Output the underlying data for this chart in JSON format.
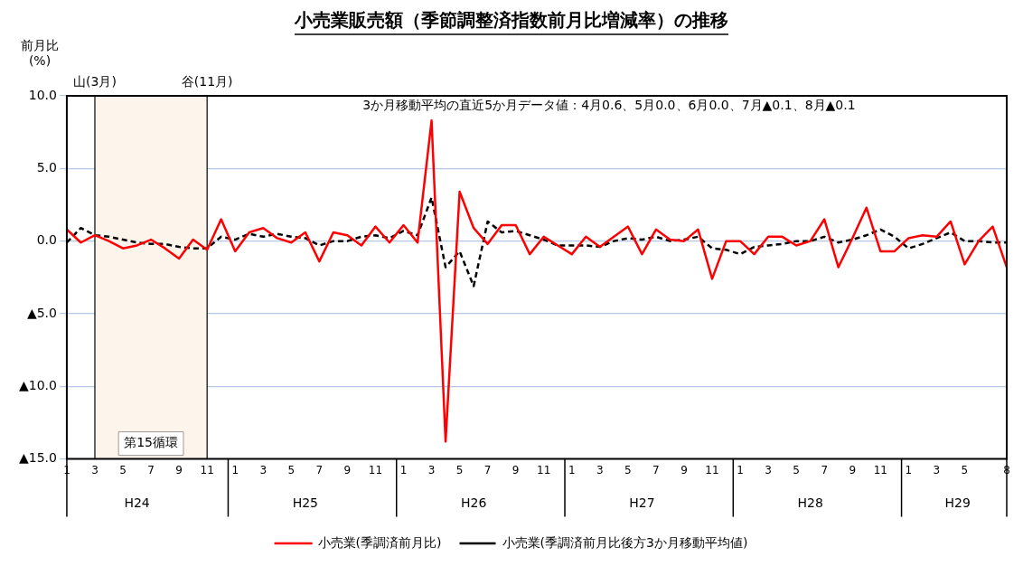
{
  "chart_data": {
    "type": "line",
    "title": "小売業販売額（季節調整済指数前月比増減率）の推移",
    "ylabel": "前月比\n(%)",
    "categories": [
      "1",
      null,
      "3",
      null,
      "5",
      null,
      "7",
      null,
      "9",
      null,
      "11",
      null,
      "1",
      null,
      "3",
      null,
      "5",
      null,
      "7",
      null,
      "9",
      null,
      "11",
      null,
      "1",
      null,
      "3",
      null,
      "5",
      null,
      "7",
      null,
      "9",
      null,
      "11",
      null,
      "1",
      null,
      "3",
      null,
      "5",
      null,
      "7",
      null,
      "9",
      null,
      "11",
      null,
      "1",
      null,
      "3",
      null,
      "5",
      null,
      "7",
      null,
      "9",
      null,
      "11",
      null,
      "1",
      null,
      "3",
      null,
      "5",
      null,
      null,
      "8"
    ],
    "series": [
      {
        "name": "小売業(季調済前月比)",
        "color": "#ff0000",
        "line_style": "solid",
        "values": [
          0.8,
          -0.1,
          0.4,
          0.0,
          -0.5,
          -0.3,
          0.1,
          -0.5,
          -1.2,
          0.1,
          -0.6,
          1.5,
          -0.7,
          0.6,
          0.9,
          0.2,
          -0.1,
          0.6,
          -1.4,
          0.6,
          0.4,
          -0.3,
          1.0,
          -0.1,
          1.1,
          -0.1,
          8.3,
          -13.8,
          3.4,
          0.9,
          -0.2,
          1.1,
          1.1,
          -0.9,
          0.3,
          -0.3,
          -0.9,
          0.3,
          -0.4,
          0.3,
          1.0,
          -0.9,
          0.8,
          0.1,
          0.0,
          0.8,
          -2.6,
          0.0,
          0.0,
          -0.9,
          0.3,
          0.3,
          -0.3,
          0.0,
          1.5,
          -1.8,
          0.2,
          2.3,
          -0.7,
          -0.7,
          0.2,
          0.4,
          0.3,
          1.35,
          -1.6,
          0.0,
          1.0,
          -1.8
        ]
      },
      {
        "name": "小売業(季調済前月比後方3か月移動平均値)",
        "color": "#000000",
        "line_style": "dashed",
        "values": [
          -0.1,
          0.9,
          0.4,
          0.3,
          0.1,
          -0.1,
          -0.2,
          -0.2,
          -0.4,
          -0.5,
          -0.5,
          0.3,
          0.1,
          0.5,
          0.3,
          0.5,
          0.3,
          0.2,
          -0.3,
          0.0,
          0.0,
          0.3,
          0.4,
          0.2,
          0.7,
          0.4,
          3.0,
          -1.8,
          -0.7,
          -3.1,
          1.35,
          0.6,
          0.7,
          0.4,
          0.1,
          -0.3,
          -0.3,
          -0.3,
          -0.4,
          0.0,
          0.2,
          0.1,
          0.3,
          0.0,
          0.1,
          0.3,
          -0.5,
          -0.6,
          -0.9,
          -0.4,
          -0.3,
          -0.2,
          0.0,
          0.0,
          0.3,
          -0.1,
          0.1,
          0.4,
          0.8,
          0.3,
          -0.5,
          -0.2,
          0.2,
          0.6,
          0.0,
          0.0,
          -0.1,
          -0.1
        ]
      }
    ],
    "ylim": [
      -15,
      10
    ],
    "yticks": [
      {
        "value": 10,
        "label": "10.0"
      },
      {
        "value": 5,
        "label": "5.0"
      },
      {
        "value": 0,
        "label": "0.0"
      },
      {
        "value": -5,
        "label": "▲5.0"
      },
      {
        "value": -10,
        "label": "▲10.0"
      },
      {
        "value": -15,
        "label": "▲15.0"
      }
    ],
    "grid": "y",
    "legend": "bottom",
    "marker": "none",
    "bands": [
      {
        "axis": "x",
        "from": "3",
        "to": "11",
        "label": "第15循環",
        "color": "#fdf5ec"
      }
    ],
    "ref_lines": [
      {
        "axis": "x",
        "value": "3",
        "label": "山(3月)",
        "color": "#000000"
      },
      {
        "axis": "x",
        "value": "11",
        "label": "谷(11月)",
        "color": "#000000"
      }
    ],
    "annotations": [
      "3か月移動平均の直近5か月データ値：4月0.6、5月0.0、6月0.0、7月▲0.1、8月▲0.1",
      "H24",
      "H25",
      "H26",
      "H27",
      "H28",
      "H29"
    ]
  }
}
